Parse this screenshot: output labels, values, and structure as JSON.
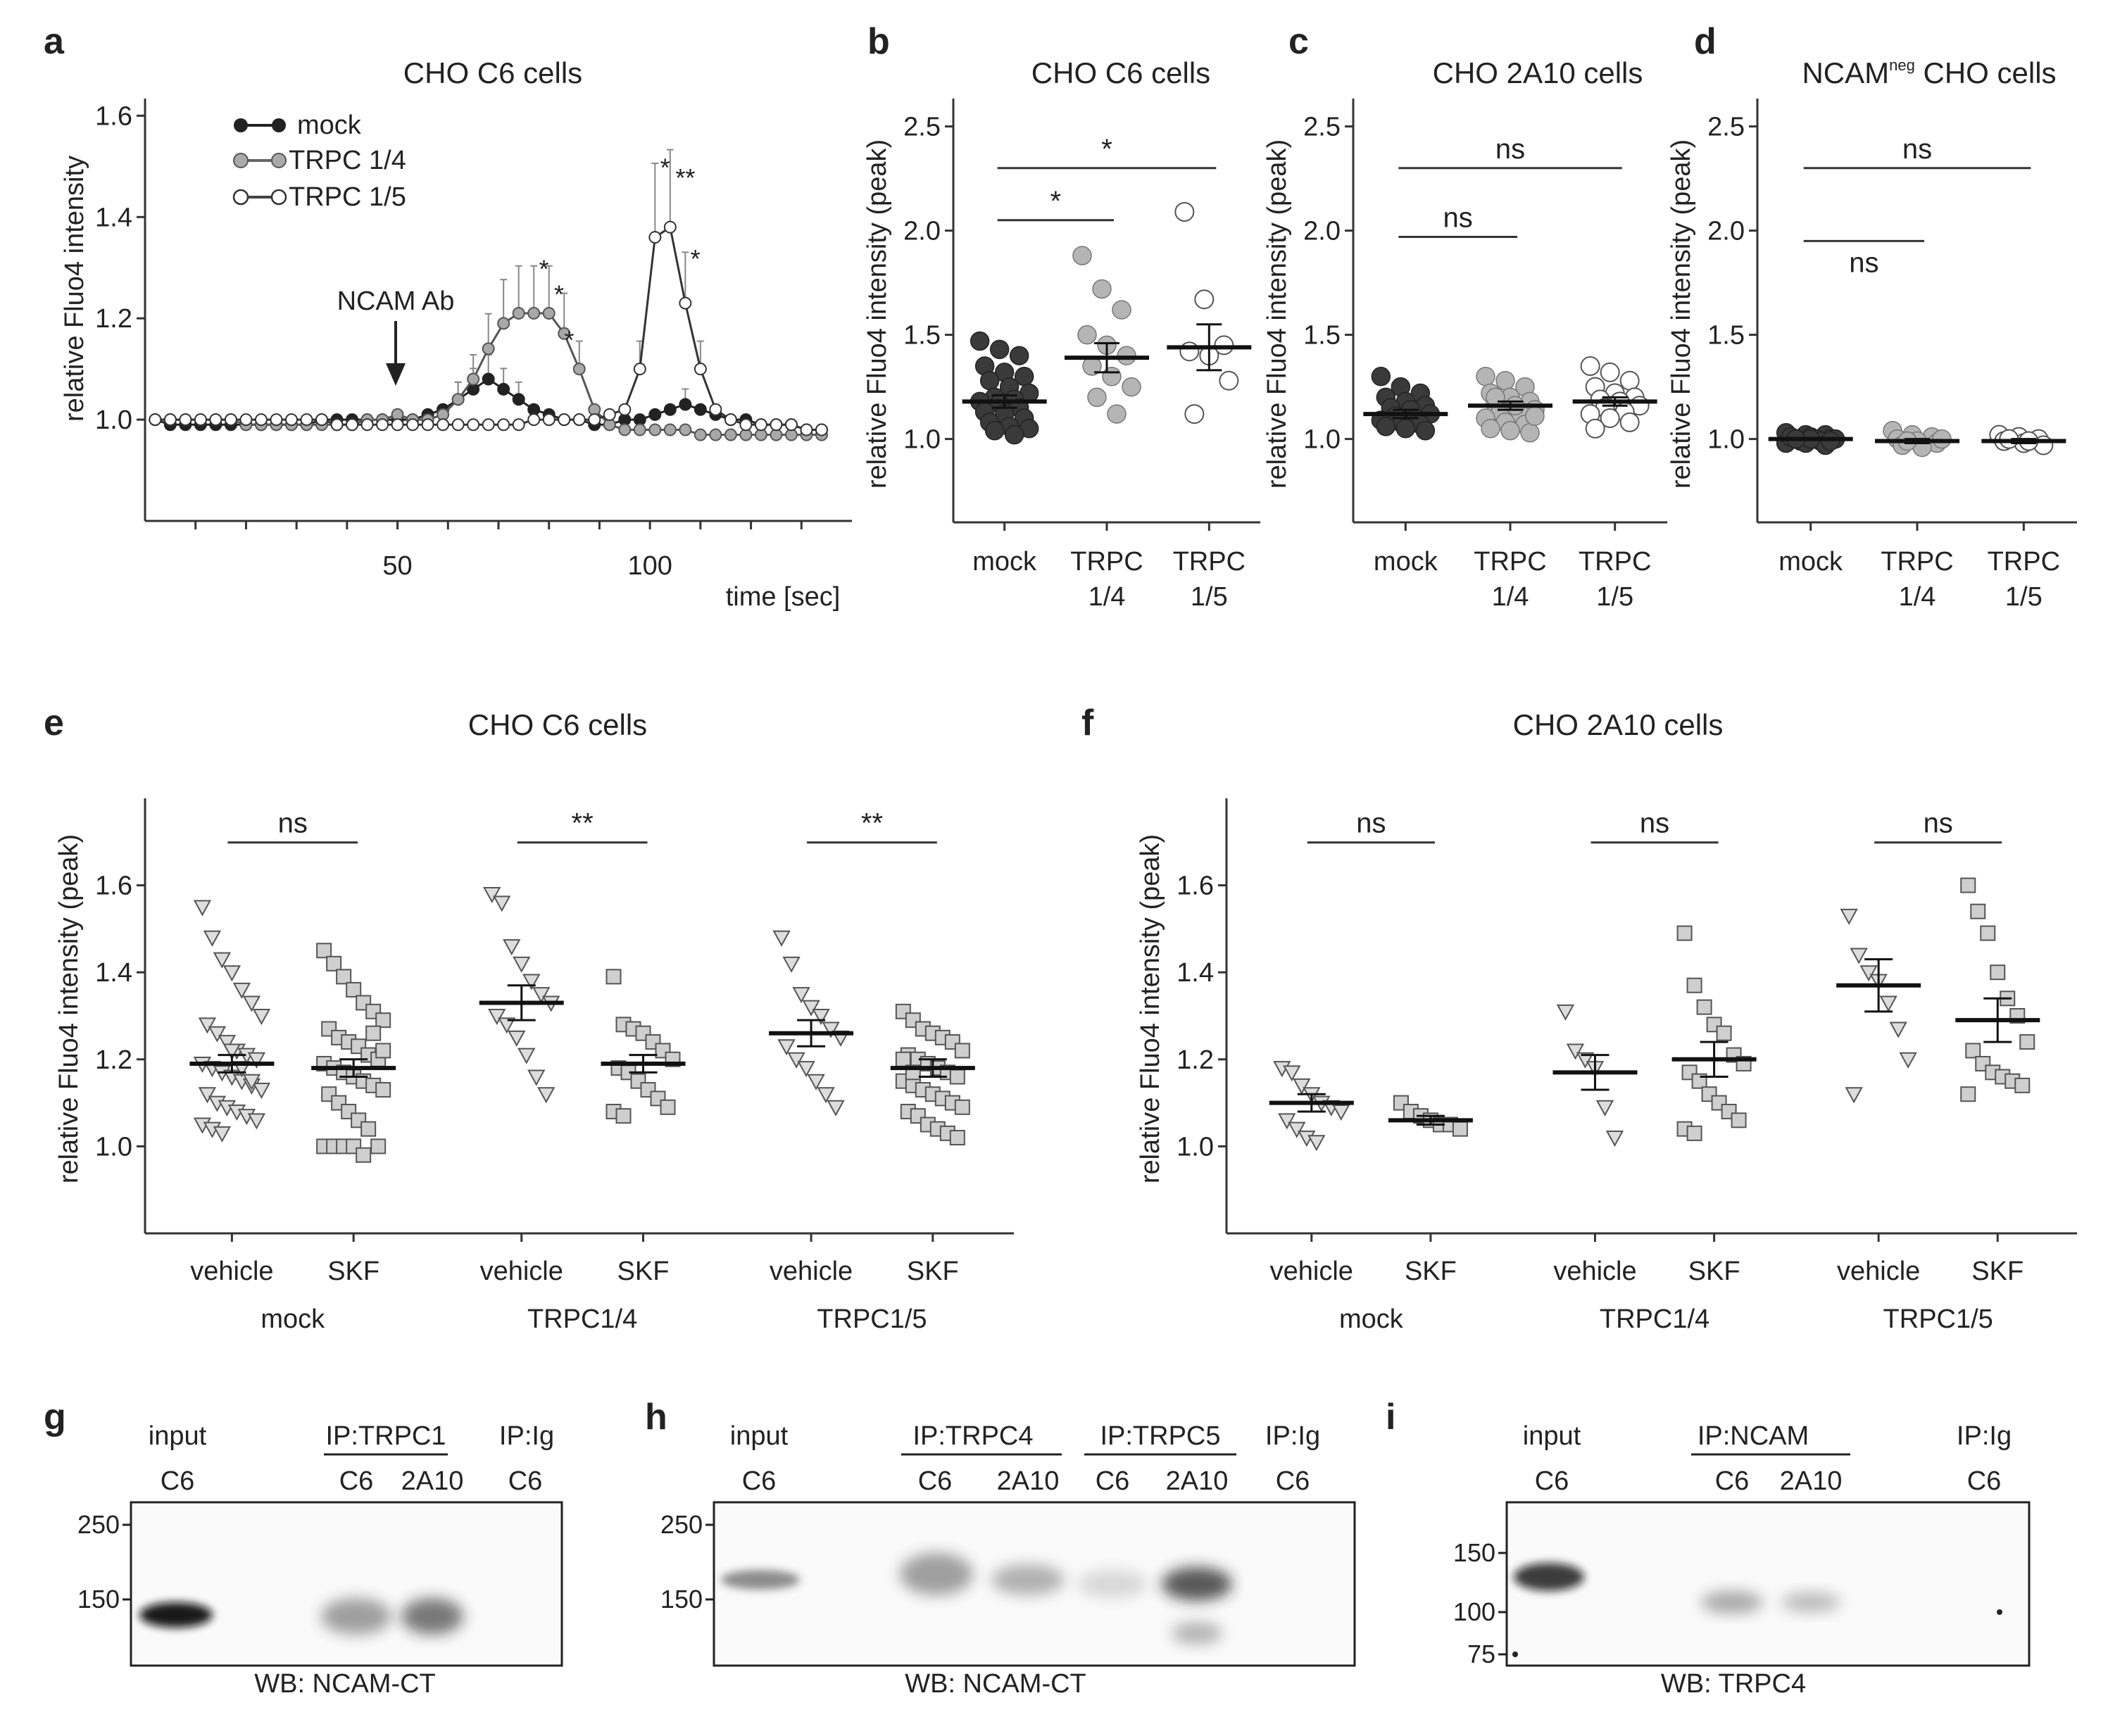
{
  "chart_data": [
    {
      "panel": "a",
      "type": "line",
      "title": "CHO C6 cells",
      "xlabel": "time [sec]",
      "ylabel": "relative Fluo4 intensity",
      "xlim": [
        0,
        140
      ],
      "ylim": [
        0.8,
        1.62
      ],
      "xticks": [
        50,
        100
      ],
      "yticks": [
        1.0,
        1.2,
        1.4,
        1.6
      ],
      "annotation": "NCAM Ab",
      "annotation_x": 50,
      "x": [
        2,
        5,
        8,
        11,
        14,
        17,
        20,
        23,
        26,
        29,
        32,
        35,
        38,
        41,
        44,
        47,
        50,
        53,
        56,
        59,
        62,
        65,
        68,
        71,
        74,
        77,
        80,
        83,
        86,
        89,
        92,
        95,
        98,
        101,
        104,
        107,
        110,
        113,
        116,
        119,
        122,
        125,
        128,
        131,
        134
      ],
      "series": [
        {
          "name": "mock",
          "style": "filled-dark",
          "values": [
            1.0,
            0.99,
            0.99,
            0.99,
            0.99,
            0.99,
            0.99,
            0.99,
            0.99,
            0.99,
            0.99,
            1.0,
            1.0,
            1.0,
            1.0,
            1.0,
            1.0,
            1.0,
            1.01,
            1.02,
            1.04,
            1.06,
            1.08,
            1.06,
            1.04,
            1.02,
            1.01,
            1.0,
            1.0,
            0.99,
            0.99,
            1.0,
            1.0,
            1.01,
            1.02,
            1.03,
            1.02,
            1.01,
            1.0,
            1.0,
            0.99,
            0.99,
            0.99,
            0.98,
            0.98
          ]
        },
        {
          "name": "TRPC 1/4",
          "style": "filled-grey",
          "values": [
            1.0,
            1.0,
            1.0,
            1.0,
            1.0,
            1.0,
            0.99,
            0.99,
            0.99,
            0.99,
            0.99,
            0.99,
            0.99,
            0.99,
            1.0,
            1.0,
            1.01,
            1.0,
            1.0,
            1.01,
            1.04,
            1.08,
            1.14,
            1.19,
            1.21,
            1.21,
            1.21,
            1.17,
            1.1,
            1.02,
            0.99,
            0.98,
            0.98,
            0.98,
            0.98,
            0.98,
            0.97,
            0.97,
            0.97,
            0.97,
            0.97,
            0.97,
            0.97,
            0.97,
            0.97
          ]
        },
        {
          "name": "TRPC 1/5",
          "style": "open",
          "values": [
            1.0,
            1.0,
            1.0,
            1.0,
            1.0,
            1.0,
            1.0,
            1.0,
            1.0,
            1.0,
            1.0,
            1.0,
            0.99,
            0.99,
            0.99,
            0.99,
            0.99,
            0.99,
            0.99,
            0.99,
            0.99,
            0.99,
            0.99,
            0.99,
            0.99,
            1.0,
            1.0,
            1.0,
            1.0,
            1.0,
            1.01,
            1.02,
            1.1,
            1.36,
            1.38,
            1.23,
            1.1,
            1.02,
            1.0,
            0.99,
            0.99,
            0.99,
            0.99,
            0.98,
            0.98
          ]
        }
      ],
      "significance": [
        {
          "label": "*",
          "x": 79,
          "y": 1.28
        },
        {
          "label": "*",
          "x": 82,
          "y": 1.23
        },
        {
          "label": "*",
          "x": 84,
          "y": 1.14
        },
        {
          "label": "*",
          "x": 103,
          "y": 1.48
        },
        {
          "label": "**",
          "x": 107,
          "y": 1.46
        },
        {
          "label": "*",
          "x": 109,
          "y": 1.3
        }
      ]
    },
    {
      "panel": "b",
      "type": "scatter",
      "title": "CHO C6 cells",
      "ylabel": "relative Fluo4 intensity (peak)",
      "ylim": [
        0.6,
        2.6
      ],
      "yticks": [
        1.0,
        1.5,
        2.0,
        2.5
      ],
      "categories": [
        [
          "mock"
        ],
        [
          "TRPC",
          "1/4"
        ],
        [
          "TRPC",
          "1/5"
        ]
      ],
      "groups": [
        {
          "name": "mock",
          "style": "dark-circle",
          "mean": 1.18,
          "sem": 0.03,
          "values": [
            1.47,
            1.43,
            1.4,
            1.35,
            1.32,
            1.3,
            1.28,
            1.25,
            1.22,
            1.2,
            1.19,
            1.18,
            1.17,
            1.15,
            1.13,
            1.12,
            1.1,
            1.08,
            1.06,
            1.05,
            1.04,
            1.02
          ]
        },
        {
          "name": "TRPC 1/4",
          "style": "grey-circle",
          "mean": 1.39,
          "sem": 0.07,
          "values": [
            1.88,
            1.72,
            1.62,
            1.5,
            1.45,
            1.4,
            1.35,
            1.3,
            1.25,
            1.2,
            1.12
          ]
        },
        {
          "name": "TRPC 1/5",
          "style": "open-circle",
          "mean": 1.44,
          "sem": 0.11,
          "values": [
            2.09,
            1.67,
            1.45,
            1.42,
            1.4,
            1.28,
            1.12
          ]
        }
      ],
      "brackets": [
        {
          "from": 0,
          "to": 1,
          "label": "*",
          "y": 2.05
        },
        {
          "from": 0,
          "to": 2,
          "label": "*",
          "y": 2.3
        }
      ]
    },
    {
      "panel": "c",
      "type": "scatter",
      "title": "CHO 2A10 cells",
      "ylabel": "relative Fluo4 intensity (peak)",
      "ylim": [
        0.6,
        2.6
      ],
      "yticks": [
        1.0,
        1.5,
        2.0,
        2.5
      ],
      "categories": [
        [
          "mock"
        ],
        [
          "TRPC",
          "1/4"
        ],
        [
          "TRPC",
          "1/5"
        ]
      ],
      "groups": [
        {
          "name": "mock",
          "style": "dark-circle",
          "mean": 1.12,
          "sem": 0.02,
          "values": [
            1.3,
            1.25,
            1.22,
            1.2,
            1.18,
            1.16,
            1.15,
            1.14,
            1.12,
            1.11,
            1.1,
            1.09,
            1.08,
            1.07,
            1.06,
            1.05,
            1.04
          ]
        },
        {
          "name": "TRPC 1/4",
          "style": "grey-circle",
          "mean": 1.16,
          "sem": 0.02,
          "values": [
            1.3,
            1.28,
            1.25,
            1.22,
            1.2,
            1.18,
            1.17,
            1.15,
            1.14,
            1.13,
            1.12,
            1.1,
            1.08,
            1.07,
            1.05,
            1.04,
            1.03,
            1.2,
            1.16,
            1.11
          ]
        },
        {
          "name": "TRPC 1/5",
          "style": "open-circle",
          "mean": 1.18,
          "sem": 0.02,
          "values": [
            1.35,
            1.32,
            1.28,
            1.25,
            1.22,
            1.2,
            1.19,
            1.18,
            1.16,
            1.15,
            1.13,
            1.12,
            1.1,
            1.08,
            1.05
          ]
        }
      ],
      "brackets": [
        {
          "from": 0,
          "to": 1,
          "label": "ns",
          "y": 1.97
        },
        {
          "from": 0,
          "to": 2,
          "label": "ns",
          "y": 2.3
        }
      ]
    },
    {
      "panel": "d",
      "type": "scatter",
      "title": "NCAM",
      "title_sup": "neg",
      "title_rest": "CHO cells",
      "ylabel": "relative Fluo4 intensity (peak)",
      "ylim": [
        0.6,
        2.6
      ],
      "yticks": [
        1.0,
        1.5,
        2.0,
        2.5
      ],
      "categories": [
        [
          "mock"
        ],
        [
          "TRPC",
          "1/4"
        ],
        [
          "TRPC",
          "1/5"
        ]
      ],
      "groups": [
        {
          "name": "mock",
          "style": "dark-circle",
          "mean": 1.0,
          "sem": 0.005,
          "values": [
            1.03,
            1.02,
            1.02,
            1.01,
            1.01,
            1.0,
            1.0,
            1.0,
            1.0,
            0.99,
            0.99,
            0.98,
            0.98,
            0.97,
            1.01,
            1.0,
            0.99,
            1.0
          ]
        },
        {
          "name": "TRPC 1/4",
          "style": "grey-circle",
          "mean": 0.99,
          "sem": 0.01,
          "values": [
            1.04,
            1.02,
            1.01,
            1.0,
            0.99,
            0.98,
            0.97,
            0.96,
            1.0,
            0.99
          ]
        },
        {
          "name": "TRPC 1/5",
          "style": "open-circle",
          "mean": 0.99,
          "sem": 0.01,
          "values": [
            1.02,
            1.01,
            1.0,
            0.99,
            0.98,
            0.97,
            1.0,
            0.99
          ]
        }
      ],
      "brackets": [
        {
          "from": 0,
          "to": 1,
          "label": "ns",
          "y": 1.95,
          "label_below": true
        },
        {
          "from": 0,
          "to": 2,
          "label": "ns",
          "y": 2.3
        }
      ]
    },
    {
      "panel": "e",
      "type": "scatter",
      "title": "CHO C6 cells",
      "ylabel": "relative Fluo4 intensity (peak)",
      "ylim": [
        0.8,
        1.8
      ],
      "yticks": [
        1.0,
        1.2,
        1.4,
        1.6
      ],
      "columns": [
        "vehicle",
        "SKF",
        "vehicle",
        "SKF",
        "vehicle",
        "SKF"
      ],
      "group_labels": [
        "mock",
        "TRPC1/4",
        "TRPC1/5"
      ],
      "groups": [
        {
          "name": "mock vehicle",
          "style": "triangle",
          "mean": 1.19,
          "sem": 0.02,
          "values": [
            1.55,
            1.48,
            1.43,
            1.4,
            1.36,
            1.33,
            1.3,
            1.28,
            1.26,
            1.24,
            1.22,
            1.21,
            1.2,
            1.19,
            1.18,
            1.17,
            1.16,
            1.15,
            1.14,
            1.13,
            1.12,
            1.1,
            1.09,
            1.08,
            1.07,
            1.06,
            1.05,
            1.04,
            1.03,
            1.22,
            1.18,
            1.15
          ]
        },
        {
          "name": "mock SKF",
          "style": "square",
          "mean": 1.18,
          "sem": 0.02,
          "values": [
            1.45,
            1.42,
            1.39,
            1.36,
            1.33,
            1.31,
            1.29,
            1.27,
            1.25,
            1.24,
            1.23,
            1.21,
            1.2,
            1.19,
            1.18,
            1.17,
            1.16,
            1.15,
            1.14,
            1.13,
            1.12,
            1.1,
            1.08,
            1.06,
            1.04,
            1.0,
            1.0,
            1.0,
            1.0,
            1.0,
            0.98,
            1.26,
            1.22
          ]
        },
        {
          "name": "TRPC1/4 vehicle",
          "style": "triangle",
          "mean": 1.33,
          "sem": 0.04,
          "values": [
            1.58,
            1.56,
            1.46,
            1.42,
            1.38,
            1.35,
            1.33,
            1.3,
            1.28,
            1.25,
            1.21,
            1.16,
            1.12
          ]
        },
        {
          "name": "TRPC1/4 SKF",
          "style": "square",
          "mean": 1.19,
          "sem": 0.02,
          "values": [
            1.39,
            1.28,
            1.27,
            1.26,
            1.24,
            1.22,
            1.2,
            1.18,
            1.17,
            1.15,
            1.13,
            1.11,
            1.09,
            1.08,
            1.07
          ]
        },
        {
          "name": "TRPC1/5 vehicle",
          "style": "triangle",
          "mean": 1.26,
          "sem": 0.03,
          "values": [
            1.48,
            1.42,
            1.35,
            1.32,
            1.3,
            1.27,
            1.25,
            1.23,
            1.2,
            1.18,
            1.15,
            1.12,
            1.09
          ]
        },
        {
          "name": "TRPC1/5 SKF",
          "style": "square",
          "mean": 1.18,
          "sem": 0.02,
          "values": [
            1.31,
            1.29,
            1.27,
            1.26,
            1.25,
            1.24,
            1.22,
            1.21,
            1.2,
            1.19,
            1.18,
            1.17,
            1.16,
            1.15,
            1.14,
            1.13,
            1.12,
            1.11,
            1.1,
            1.09,
            1.08,
            1.07,
            1.05,
            1.04,
            1.03,
            1.02,
            1.2,
            1.17
          ]
        }
      ],
      "brackets": [
        {
          "from": 0,
          "to": 1,
          "label": "ns",
          "y": 1.65
        },
        {
          "from": 2,
          "to": 3,
          "label": "**",
          "y": 1.65
        },
        {
          "from": 4,
          "to": 5,
          "label": "**",
          "y": 1.65
        }
      ]
    },
    {
      "panel": "f",
      "type": "scatter",
      "title": "CHO 2A10 cells",
      "ylabel": "relative Fluo4 intensity (peak)",
      "ylim": [
        0.8,
        1.8
      ],
      "yticks": [
        1.0,
        1.2,
        1.4,
        1.6
      ],
      "columns": [
        "vehicle",
        "SKF",
        "vehicle",
        "SKF",
        "vehicle",
        "SKF"
      ],
      "group_labels": [
        "mock",
        "TRPC1/4",
        "TRPC1/5"
      ],
      "groups": [
        {
          "name": "mock vehicle",
          "style": "triangle",
          "mean": 1.1,
          "sem": 0.02,
          "values": [
            1.18,
            1.17,
            1.14,
            1.12,
            1.1,
            1.09,
            1.08,
            1.06,
            1.04,
            1.02,
            1.01
          ]
        },
        {
          "name": "mock SKF",
          "style": "square",
          "mean": 1.06,
          "sem": 0.01,
          "values": [
            1.1,
            1.08,
            1.07,
            1.06,
            1.05,
            1.05,
            1.04
          ]
        },
        {
          "name": "TRPC1/4 vehicle",
          "style": "triangle",
          "mean": 1.17,
          "sem": 0.04,
          "values": [
            1.31,
            1.22,
            1.2,
            1.18,
            1.09,
            1.02
          ]
        },
        {
          "name": "TRPC1/4 SKF",
          "style": "square",
          "mean": 1.2,
          "sem": 0.04,
          "values": [
            1.49,
            1.37,
            1.32,
            1.28,
            1.26,
            1.21,
            1.19,
            1.17,
            1.15,
            1.12,
            1.1,
            1.08,
            1.06,
            1.04,
            1.03
          ]
        },
        {
          "name": "TRPC1/5 vehicle",
          "style": "triangle",
          "mean": 1.37,
          "sem": 0.06,
          "values": [
            1.53,
            1.44,
            1.4,
            1.38,
            1.33,
            1.27,
            1.2,
            1.12
          ]
        },
        {
          "name": "TRPC1/5 SKF",
          "style": "square",
          "mean": 1.29,
          "sem": 0.05,
          "values": [
            1.6,
            1.54,
            1.49,
            1.4,
            1.34,
            1.3,
            1.24,
            1.22,
            1.19,
            1.17,
            1.16,
            1.15,
            1.14,
            1.12
          ]
        }
      ],
      "brackets": [
        {
          "from": 0,
          "to": 1,
          "label": "ns",
          "y": 1.65
        },
        {
          "from": 2,
          "to": 3,
          "label": "ns",
          "y": 1.65
        },
        {
          "from": 4,
          "to": 5,
          "label": "ns",
          "y": 1.65
        }
      ]
    }
  ],
  "figure": {
    "panel_labels": {
      "a": "a",
      "b": "b",
      "c": "c",
      "d": "d",
      "e": "e",
      "f": "f",
      "g": "g",
      "h": "h",
      "i": "i"
    },
    "legend": [
      "mock",
      "TRPC 1/4",
      "TRPC 1/5"
    ]
  },
  "blots": {
    "g": {
      "group_labels": [
        "input",
        "IP:TRPC1",
        "IP:Ig"
      ],
      "lane_labels": [
        "C6",
        "C6",
        "2A10",
        "C6"
      ],
      "markers": [
        "250",
        "150"
      ],
      "wb": "WB: NCAM-CT",
      "band_intensity": [
        0.95,
        0.45,
        0.55,
        0.0
      ]
    },
    "h": {
      "group_labels": [
        "input",
        "IP:TRPC4",
        "IP:TRPC5",
        "IP:Ig"
      ],
      "lane_labels": [
        "C6",
        "C6",
        "2A10",
        "C6",
        "2A10",
        "C6"
      ],
      "markers": [
        "250",
        "150"
      ],
      "wb": "WB: NCAM-CT",
      "band_intensity": [
        0.55,
        0.45,
        0.4,
        0.2,
        0.75,
        0.05
      ]
    },
    "i": {
      "group_labels": [
        "input",
        "IP:NCAM",
        "IP:Ig"
      ],
      "lane_labels": [
        "C6",
        "C6",
        "2A10",
        "C6"
      ],
      "markers": [
        "150",
        "100",
        "75"
      ],
      "wb": "WB: TRPC4",
      "band_intensity": [
        0.85,
        0.35,
        0.3,
        0.0
      ]
    }
  }
}
